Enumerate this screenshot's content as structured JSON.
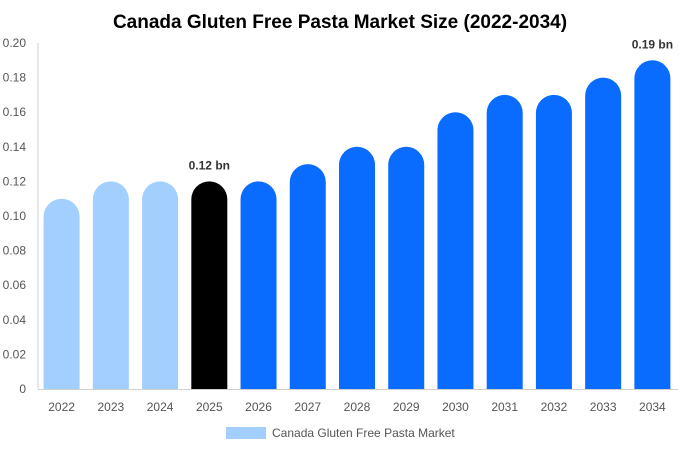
{
  "chart_data": {
    "type": "bar",
    "title": "Canada Gluten Free Pasta Market Size (2022-2034)",
    "xlabel": "",
    "ylabel": "",
    "ylim": [
      0,
      0.2
    ],
    "yticks": [
      0,
      0.02,
      0.04,
      0.06,
      0.08,
      0.1,
      0.12,
      0.14,
      0.16,
      0.18,
      0.2
    ],
    "ytick_labels": [
      "0",
      "0.02",
      "0.04",
      "0.06",
      "0.08",
      "0.10",
      "0.12",
      "0.14",
      "0.16",
      "0.18",
      "0.20"
    ],
    "categories": [
      "2022",
      "2023",
      "2024",
      "2025",
      "2026",
      "2027",
      "2028",
      "2029",
      "2030",
      "2031",
      "2032",
      "2033",
      "2034"
    ],
    "series": [
      {
        "name": "Canada Gluten Free Pasta Market",
        "values": [
          0.11,
          0.12,
          0.12,
          0.12,
          0.12,
          0.13,
          0.14,
          0.14,
          0.16,
          0.17,
          0.17,
          0.18,
          0.19
        ]
      }
    ],
    "bar_colors": [
      "#a3cfff",
      "#a3cfff",
      "#a3cfff",
      "#000000",
      "#0a6cff",
      "#0a6cff",
      "#0a6cff",
      "#0a6cff",
      "#0a6cff",
      "#0a6cff",
      "#0a6cff",
      "#0a6cff",
      "#0a6cff"
    ],
    "data_labels": [
      {
        "index": 3,
        "text": "0.12 bn"
      },
      {
        "index": 12,
        "text": "0.19 bn"
      }
    ],
    "legend": {
      "position": "bottom-center",
      "label": "Canada Gluten Free Pasta Market",
      "color": "#a3cfff"
    },
    "grid": false
  }
}
